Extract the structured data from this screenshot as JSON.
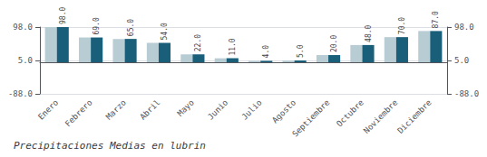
{
  "chart_data": {
    "type": "bar",
    "title": "Precipitaciones Medias en lubrin",
    "categories": [
      "Enero",
      "Febrero",
      "Marzo",
      "Abril",
      "Mayo",
      "Junio",
      "Julio",
      "Agosto",
      "Septiembre",
      "Octubre",
      "Noviembre",
      "Diciembre"
    ],
    "series": [
      {
        "color": "#b8ccd4",
        "values": [
          98,
          69,
          65,
          54,
          22,
          11,
          4,
          5,
          20,
          48,
          70,
          87
        ]
      },
      {
        "color": "#1a5f7a",
        "values": [
          98,
          69,
          65,
          54,
          22,
          11,
          4,
          5,
          20,
          48,
          70,
          87
        ],
        "value_labels": [
          "98.0",
          "69.0",
          "65.0",
          "54.0",
          "22.0",
          "11.0",
          "4.0",
          "5.0",
          "20.0",
          "48.0",
          "70.0",
          "87.0"
        ]
      }
    ],
    "ylim": [
      -88,
      98
    ],
    "yticks": [
      {
        "value": -88,
        "label": "-88.0"
      },
      {
        "value": 5,
        "label": "5.0"
      },
      {
        "value": 98,
        "label": "98.0"
      }
    ],
    "y2lim": [
      -88,
      98
    ],
    "y2ticks": [
      {
        "value": -88,
        "label": "-88.0"
      },
      {
        "value": 5,
        "label": "5.0"
      },
      {
        "value": 98,
        "label": "98.0"
      }
    ],
    "grid": true,
    "data_labels": true
  }
}
